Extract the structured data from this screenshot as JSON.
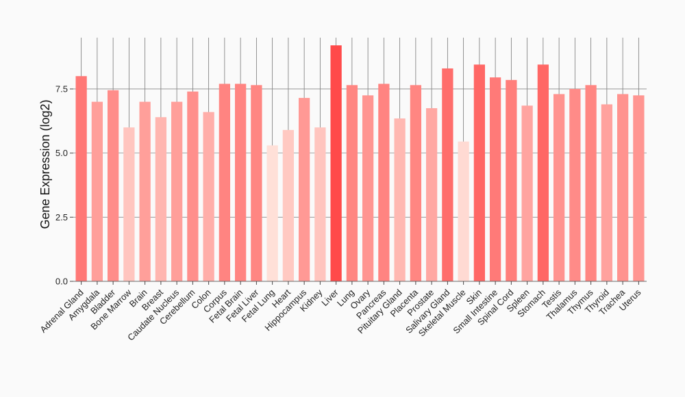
{
  "chart_data": {
    "type": "bar",
    "title": "",
    "xlabel": "",
    "ylabel": "Gene Expression (log2)",
    "ylim": [
      0,
      9.5
    ],
    "yticks": [
      0.0,
      2.5,
      5.0,
      7.5
    ],
    "ytick_labels": [
      "0.0",
      "2.5",
      "5.0",
      "7.5"
    ],
    "grid": "horizontal and vertical",
    "categories": [
      "Adrenal Gland",
      "Amygdala",
      "Bladder",
      "Bone Marrow",
      "Brain",
      "Breast",
      "Caudate Nucleus",
      "Cerebellum",
      "Colon",
      "Corpus",
      "Fetal Brain",
      "Fetal Liver",
      "Fetal Lung",
      "Heart",
      "Hippocampus",
      "Kidney",
      "Liver",
      "Lung",
      "Ovary",
      "Pancreas",
      "Pituitary Gland",
      "Placenta",
      "Prostate",
      "Salivary Gland",
      "Skeletal Muscle",
      "Skin",
      "Small Intestine",
      "Spinal Cord",
      "Spleen",
      "Stomach",
      "Testis",
      "Thalamus",
      "Thymus",
      "Thyroid",
      "Trachea",
      "Uterus"
    ],
    "values": [
      8.0,
      7.0,
      7.45,
      6.0,
      7.0,
      6.4,
      7.0,
      7.4,
      6.6,
      7.7,
      7.7,
      7.65,
      5.3,
      5.9,
      7.15,
      6.0,
      9.2,
      7.65,
      7.25,
      7.7,
      6.35,
      7.65,
      6.75,
      8.3,
      5.45,
      8.45,
      7.95,
      7.85,
      6.85,
      8.45,
      7.3,
      7.5,
      7.65,
      6.9,
      7.3,
      7.25
    ],
    "color_scale": {
      "low": "#ffe0d8",
      "high": "#ff4a4a",
      "min_value": 5.3,
      "max_value": 9.2
    }
  }
}
